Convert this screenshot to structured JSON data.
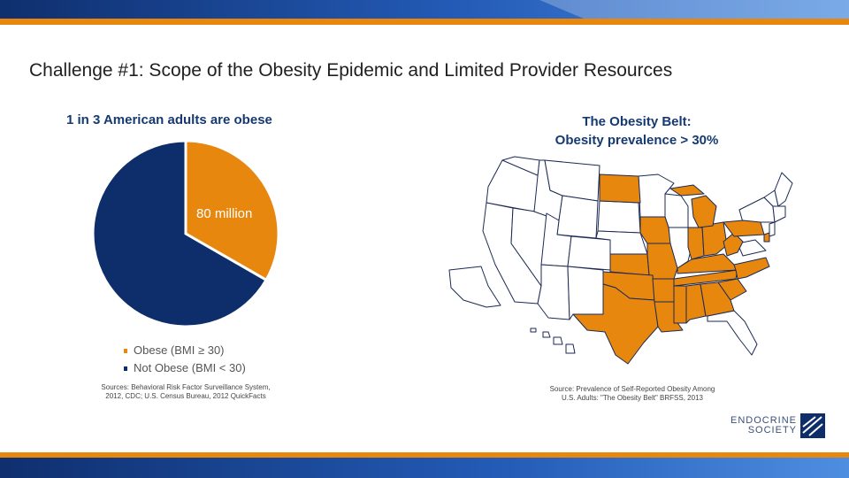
{
  "slide": {
    "title": "Challenge #1: Scope of the Obesity Epidemic and Limited Provider Resources"
  },
  "left_panel": {
    "heading": "1 in 3 American adults are obese",
    "pie_label": "80 million",
    "legend": [
      {
        "label": "Obese (BMI ≥ 30)",
        "color": "#e8870e"
      },
      {
        "label": "Not Obese (BMI < 30)",
        "color": "#0d2d6b"
      }
    ],
    "source_line1": "Sources: Behavioral Risk Factor Surveillance System,",
    "source_line2": "2012, CDC; U.S. Census Bureau, 2012 QuickFacts"
  },
  "chart_data": {
    "type": "pie",
    "title": "",
    "slices": [
      {
        "name": "Obese (BMI ≥ 30)",
        "value": 0.333,
        "color": "#e8870e",
        "label": "80 million"
      },
      {
        "name": "Not Obese (BMI < 30)",
        "value": 0.667,
        "color": "#0d2d6b"
      }
    ]
  },
  "right_panel": {
    "heading_line1": "The Obesity Belt:",
    "heading_line2": "Obesity prevalence > 30%",
    "source_line1": "Source: Prevalence of Self-Reported Obesity Among",
    "source_line2": "U.S. Adults: \"The Obesity Belt\" BRFSS, 2013",
    "highlight_color": "#e8870e"
  },
  "logo": {
    "line1": "ENDOCRINE",
    "line2": "SOCIETY"
  },
  "colors": {
    "navy": "#0d2d6b",
    "orange": "#e8870e",
    "band_blue": "#2f6cc4"
  }
}
